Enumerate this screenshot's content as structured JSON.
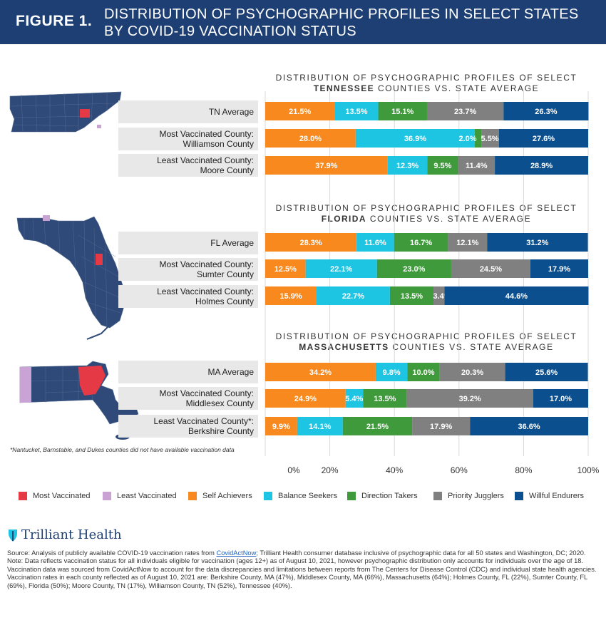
{
  "header": {
    "figure_number": "FIGURE 1.",
    "title": "DISTRIBUTION OF PSYCHOGRAPHIC PROFILES IN SELECT STATES BY COVID-19 VACCINATION STATUS"
  },
  "colors": {
    "header_bg": "#1d3f73",
    "most_vaccinated": "#e63946",
    "least_vaccinated": "#c9a3d4",
    "map_fill": "#2f4a78"
  },
  "sections": [
    {
      "title_line1": "DISTRIBUTION OF PSYCHOGRAPHIC PROFILES OF SELECT",
      "state": "TENNESSEE",
      "title_line2_rest": " COUNTIES VS. STATE AVERAGE"
    },
    {
      "title_line1": "DISTRIBUTION OF PSYCHOGRAPHIC PROFILES OF SELECT",
      "state": "FLORIDA",
      "title_line2_rest": " COUNTIES VS. STATE AVERAGE"
    },
    {
      "title_line1": "DISTRIBUTION OF PSYCHOGRAPHIC PROFILES OF SELECT",
      "state": "MASSACHUSETTS",
      "title_line2_rest": " COUNTIES VS. STATE AVERAGE"
    }
  ],
  "rows": [
    {
      "line1": "TN Average",
      "line2": ""
    },
    {
      "line1": "Most Vaccinated County:",
      "line2": "Williamson County"
    },
    {
      "line1": "Least Vaccinated County:",
      "line2": "Moore County"
    },
    {
      "line1": "FL Average",
      "line2": ""
    },
    {
      "line1": "Most Vaccinated County:",
      "line2": "Sumter County"
    },
    {
      "line1": "Least Vaccinated County:",
      "line2": "Holmes County"
    },
    {
      "line1": "MA Average",
      "line2": ""
    },
    {
      "line1": "Most Vaccinated County:",
      "line2": "Middlesex County"
    },
    {
      "line1": "Least Vaccinated County*:",
      "line2": "Berkshire County"
    }
  ],
  "chart_data": {
    "type": "bar",
    "orientation": "horizontal",
    "stacked": true,
    "categories": [
      "TN Average",
      "Williamson County",
      "Moore County",
      "FL Average",
      "Sumter County",
      "Holmes County",
      "MA Average",
      "Middlesex County",
      "Berkshire County"
    ],
    "series": [
      {
        "name": "Self Achievers",
        "color": "#f7891f",
        "values": [
          21.5,
          28.0,
          37.9,
          28.3,
          12.5,
          15.9,
          34.2,
          24.9,
          9.9
        ]
      },
      {
        "name": "Balance Seekers",
        "color": "#1ec5e3",
        "values": [
          13.5,
          36.9,
          12.3,
          11.6,
          22.1,
          22.7,
          9.8,
          5.4,
          14.1
        ]
      },
      {
        "name": "Direction Takers",
        "color": "#3e9a3a",
        "values": [
          15.1,
          2.0,
          9.5,
          16.7,
          23.0,
          13.5,
          10.0,
          13.5,
          21.5
        ]
      },
      {
        "name": "Priority Jugglers",
        "color": "#808080",
        "values": [
          23.7,
          5.5,
          11.4,
          12.1,
          24.5,
          3.4,
          20.3,
          39.2,
          17.9
        ]
      },
      {
        "name": "Willful Endurers",
        "color": "#0b4f8f",
        "values": [
          26.3,
          27.6,
          28.9,
          31.2,
          17.9,
          44.6,
          25.6,
          17.0,
          36.6
        ]
      }
    ],
    "value_labels": [
      [
        "21.5%",
        "13.5%",
        "15.1%",
        "23.7%",
        "26.3%"
      ],
      [
        "28.0%",
        "36.9%",
        "2.0%",
        "5.5%",
        "27.6%"
      ],
      [
        "37.9%",
        "12.3%",
        "9.5%",
        "11.4%",
        "28.9%"
      ],
      [
        "28.3%",
        "11.6%",
        "16.7%",
        "12.1%",
        "31.2%"
      ],
      [
        "12.5%",
        "22.1%",
        "23.0%",
        "24.5%",
        "17.9%"
      ],
      [
        "15.9%",
        "22.7%",
        "13.5%",
        "3.4%",
        "44.6%"
      ],
      [
        "34.2%",
        "9.8%",
        "10.0%",
        "20.3%",
        "25.6%"
      ],
      [
        "24.9%",
        "5.4%",
        "13.5%",
        "39.2%",
        "17.0%"
      ],
      [
        "9.9%",
        "14.1%",
        "21.5%",
        "17.9%",
        "36.6%"
      ]
    ],
    "xlim": [
      0,
      100
    ],
    "x_ticks": [
      "0%",
      "20%",
      "40%",
      "60%",
      "80%",
      "100%"
    ],
    "grid": true
  },
  "note": "*Nantucket, Barnstable, and Dukes counties did not have available vaccination data",
  "legend": [
    {
      "label": "Most Vaccinated",
      "color": "#e63946"
    },
    {
      "label": "Least Vaccinated",
      "color": "#c9a3d4"
    },
    {
      "label": "Self Achievers",
      "color": "#f7891f"
    },
    {
      "label": "Balance Seekers",
      "color": "#1ec5e3"
    },
    {
      "label": "Direction Takers",
      "color": "#3e9a3a"
    },
    {
      "label": "Priority Jugglers",
      "color": "#808080"
    },
    {
      "label": "Willful Endurers",
      "color": "#0b4f8f"
    }
  ],
  "logo": {
    "text": "Trilliant Health"
  },
  "source": {
    "prefix": "Source: Analysis of publicly available COVID-19 vaccination rates from ",
    "link_text": "CovidActNow",
    "suffix": "; Trilliant Health consumer database inclusive of psychographic data for all 50 states and Washington, DC; 2020.",
    "note": "Note: Data reflects vaccination status for all individuals eligible for vaccination (ages 12+) as of August 10, 2021, however psychographic distribution only accounts for individuals over the age of 18. Vaccination data was sourced from CovidActNow to account for the data discrepancies and limitations between reports from The Centers for Disease Control (CDC)  and individual state health agencies. Vaccination rates in each county reflected as of August 10, 2021 are: Berkshire County, MA (47%), Middlesex County, MA (66%), Massachusetts (64%); Holmes County, FL (22%), Sumter County, FL (69%), Florida (50%); Moore County, TN (17%), Williamson County, TN (52%), Tennessee (40%)."
  }
}
